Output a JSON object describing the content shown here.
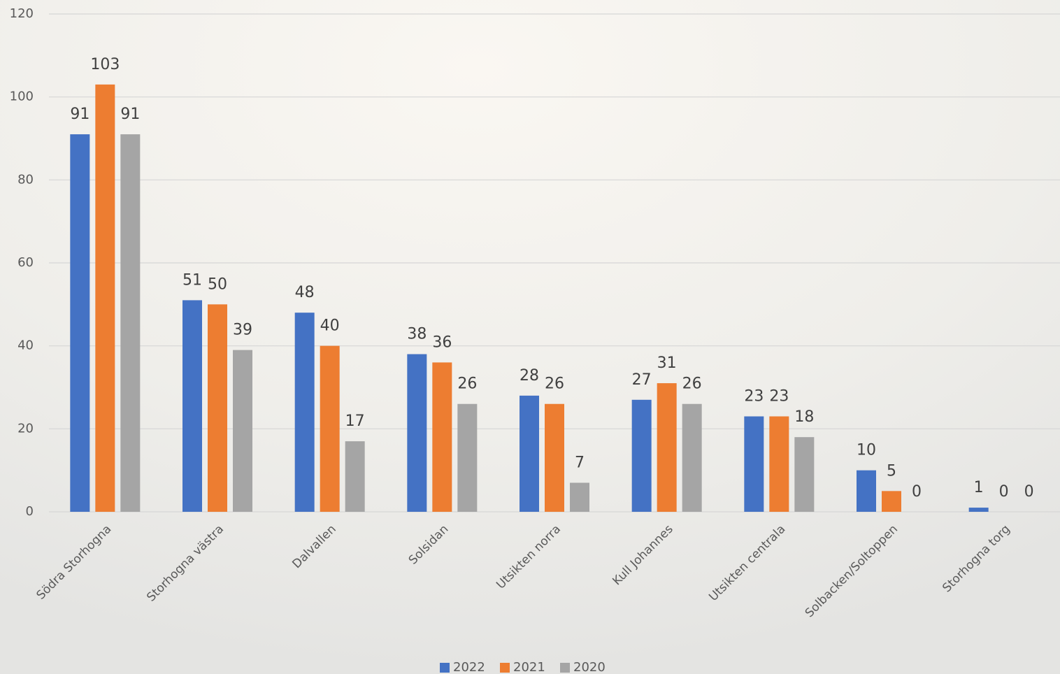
{
  "chart_data": {
    "type": "bar",
    "categories": [
      "Södra Storhogna",
      "Storhogna västra",
      "Dalvallen",
      "Solsidan",
      "Utsikten norra",
      "Kull Johannes",
      "Utsikten centrala",
      "Solbacken/Soltoppen",
      "Storhogna torg"
    ],
    "series": [
      {
        "name": "2022",
        "color": "#4472c4",
        "values": [
          91,
          51,
          48,
          38,
          28,
          27,
          23,
          10,
          1
        ]
      },
      {
        "name": "2021",
        "color": "#ed7d31",
        "values": [
          103,
          50,
          40,
          36,
          26,
          31,
          23,
          5,
          0
        ]
      },
      {
        "name": "2020",
        "color": "#a5a5a5",
        "values": [
          91,
          39,
          17,
          26,
          7,
          26,
          18,
          0,
          0
        ]
      }
    ],
    "ylim": [
      0,
      120
    ],
    "yticks": [
      0,
      20,
      40,
      60,
      80,
      100,
      120
    ],
    "grid": true,
    "legend": "bottom"
  }
}
